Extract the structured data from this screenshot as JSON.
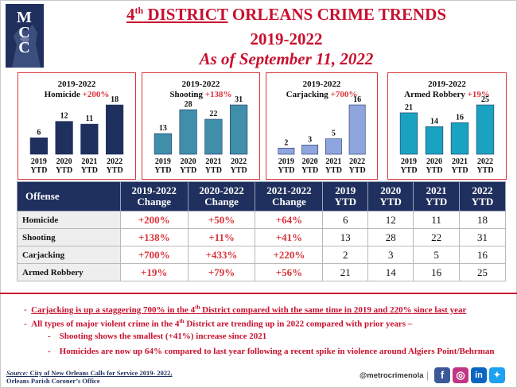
{
  "logo": {
    "line1": "M",
    "line2": "C",
    "line3": "C"
  },
  "header": {
    "title_prefix": "4",
    "title_sup": "th",
    "title_main": " DISTRICT",
    "title_rest": " ORLEANS CRIME TRENDS",
    "years": "2019-2022",
    "as_of": "As of September 11, 2022"
  },
  "chart_data": [
    {
      "type": "bar",
      "title": "2019-2022",
      "subtitle": "Homicide",
      "change": "+200%",
      "categories": [
        "2019 YTD",
        "2020 YTD",
        "2021 YTD",
        "2022 YTD"
      ],
      "values": [
        6,
        12,
        11,
        18
      ],
      "color": "#1f2f5e"
    },
    {
      "type": "bar",
      "title": "2019-2022",
      "subtitle": "Shooting",
      "change": "+138%",
      "categories": [
        "2019 YTD",
        "2020 YTD",
        "2021 YTD",
        "2022 YTD"
      ],
      "values": [
        13,
        28,
        22,
        31
      ],
      "color": "#3f8fab"
    },
    {
      "type": "bar",
      "title": "2019-2022",
      "subtitle": "Carjacking",
      "change": "+700%",
      "categories": [
        "2019 YTD",
        "2020 YTD",
        "2021 YTD",
        "2022 YTD"
      ],
      "values": [
        2,
        3,
        5,
        16
      ],
      "color": "#8fa5de"
    },
    {
      "type": "bar",
      "title": "2019-2022",
      "subtitle": "Armed Robbery",
      "change": "+19%",
      "categories": [
        "2019 YTD",
        "2020 YTD",
        "2021 YTD",
        "2022 YTD"
      ],
      "values": [
        21,
        14,
        16,
        25
      ],
      "color": "#1aa3c0"
    }
  ],
  "table": {
    "headers": [
      {
        "l1": "Offense",
        "l2": ""
      },
      {
        "l1": "2019-2022",
        "l2": "Change"
      },
      {
        "l1": "2020-2022",
        "l2": "Change"
      },
      {
        "l1": "2021-2022",
        "l2": "Change"
      },
      {
        "l1": "2019",
        "l2": "YTD"
      },
      {
        "l1": "2020",
        "l2": "YTD"
      },
      {
        "l1": "2021",
        "l2": "YTD"
      },
      {
        "l1": "2022",
        "l2": "YTD"
      }
    ],
    "rows": [
      {
        "name": "Homicide",
        "c1": "+200%",
        "c2": "+50%",
        "c3": "+64%",
        "y2019": "6",
        "y2020": "12",
        "y2021": "11",
        "y2022": "18"
      },
      {
        "name": "Shooting",
        "c1": "+138%",
        "c2": "+11%",
        "c3": "+41%",
        "y2019": "13",
        "y2020": "28",
        "y2021": "22",
        "y2022": "31"
      },
      {
        "name": "Carjacking",
        "c1": "+700%",
        "c2": "+433%",
        "c3": "+220%",
        "y2019": "2",
        "y2020": "3",
        "y2021": "5",
        "y2022": "16"
      },
      {
        "name": "Armed Robbery",
        "c1": "+19%",
        "c2": "+79%",
        "c3": "+56%",
        "y2019": "21",
        "y2020": "14",
        "y2021": "16",
        "y2022": "25"
      }
    ]
  },
  "notes": {
    "n1_a": "Carjacking is up a staggering 700% in the 4",
    "n1_sup": "th",
    "n1_b": " District compared with the same time in 2019 and 220% since last year",
    "n2_a": "All types of major violent crime in the 4",
    "n2_sup": "th",
    "n2_b": " District are trending up in 2022 compared with prior years –",
    "n3": "Shooting shows the smallest (+41%) increase since 2021",
    "n4": "Homicides are now up 64% compared to last year following a recent spike in violence around Algiers Point/Behrman",
    "dash": "-"
  },
  "footer": {
    "source_label": "Source:",
    "source_value": " City of New Orleans Calls for Service 2019- 2022,",
    "source_line2": "Orleans Parish Coroner’s Office",
    "handle": "@metrocrimenola",
    "separator": "|",
    "social": [
      {
        "icon": "facebook-icon",
        "glyph": "f"
      },
      {
        "icon": "instagram-icon",
        "glyph": "◎"
      },
      {
        "icon": "linkedin-icon",
        "glyph": "in"
      },
      {
        "icon": "twitter-icon",
        "glyph": "✦"
      }
    ]
  }
}
